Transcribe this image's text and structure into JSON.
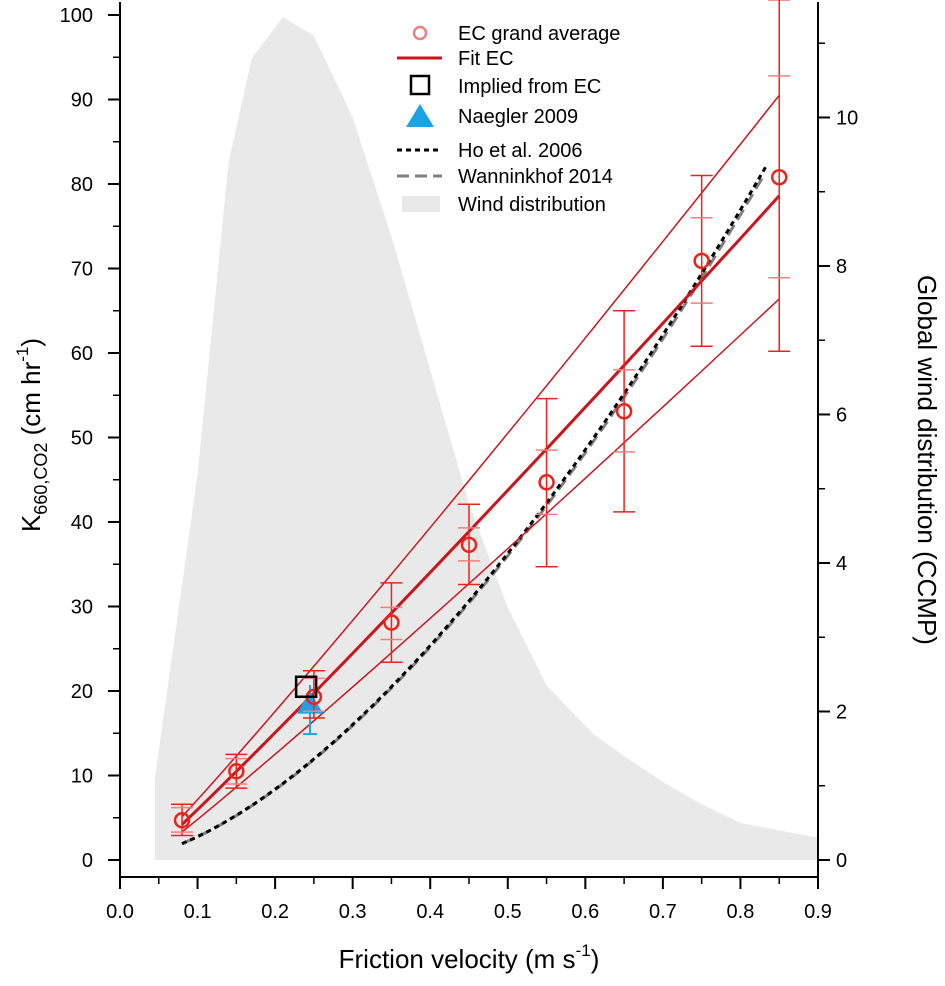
{
  "chart_data": {
    "type": "line",
    "xlabel": {
      "main": "Friction velocity (m s",
      "sup": "-1",
      "close": ")"
    },
    "ylabel": {
      "main": "K",
      "sub": "660,CO2",
      "unit": " (cm hr",
      "sup": "-1",
      "close": ")"
    },
    "y2label": "Global wind distribution (CCMP)",
    "xlim": [
      0.0,
      0.9
    ],
    "ylim": [
      0,
      100
    ],
    "y2lim": [
      0,
      11.38
    ],
    "xticks": [
      "0.0",
      "0.1",
      "0.2",
      "0.3",
      "0.4",
      "0.5",
      "0.6",
      "0.7",
      "0.8",
      "0.9"
    ],
    "yticks": [
      "0",
      "10",
      "20",
      "30",
      "40",
      "50",
      "60",
      "70",
      "80",
      "90",
      "100"
    ],
    "y2ticks": [
      "0",
      "2",
      "4",
      "6",
      "8",
      "10"
    ],
    "colors": {
      "ec": "#e8241c",
      "ec_legend": "#f08080",
      "fit": "#c8161d",
      "implied": "#000000",
      "naegler": "#1ba3e6",
      "ho": "#000000",
      "wanninkhof": "#808080",
      "wind": "#e9e9e9"
    },
    "legend": [
      {
        "label": "EC grand average",
        "icon": "circle-marker"
      },
      {
        "label": "Fit EC",
        "icon": "solid-line"
      },
      {
        "label": "Implied from EC",
        "icon": "square-marker"
      },
      {
        "label": "Naegler 2009",
        "icon": "triangle-marker"
      },
      {
        "label": "Ho et al. 2006",
        "icon": "dotted-line"
      },
      {
        "label": "Wanninkhof 2014",
        "icon": "dashed-line"
      },
      {
        "label": "Wind distribution",
        "icon": "filled-area"
      }
    ],
    "series": [
      {
        "name": "EC grand average",
        "x": [
          0.08,
          0.15,
          0.25,
          0.35,
          0.45,
          0.55,
          0.65,
          0.75,
          0.85
        ],
        "y": [
          4.7,
          10.5,
          19.3,
          28.1,
          37.3,
          44.7,
          53.1,
          70.9,
          80.8
        ],
        "err_outer_low": [
          2.9,
          8.5,
          16.8,
          23.4,
          32.6,
          34.7,
          41.2,
          60.8,
          60.2
        ],
        "err_outer_high": [
          6.6,
          12.5,
          22.4,
          32.8,
          42.1,
          54.6,
          65.0,
          81.0,
          101.8
        ],
        "err_inner_low": [
          3.3,
          9.0,
          17.6,
          26.1,
          35.4,
          40.9,
          48.3,
          65.9,
          68.9
        ],
        "err_inner_high": [
          6.2,
          12.0,
          21.5,
          29.9,
          39.3,
          48.5,
          58.0,
          76.0,
          92.8
        ]
      },
      {
        "name": "Fit EC",
        "x": [
          0.08,
          0.85
        ],
        "y": [
          4.2,
          78.6
        ],
        "upper_y": [
          5.1,
          90.5
        ],
        "lower_y": [
          3.3,
          66.4
        ]
      },
      {
        "name": "Implied from EC",
        "x": [
          0.24
        ],
        "y": [
          20.5
        ]
      },
      {
        "name": "Naegler 2009",
        "x": [
          0.245
        ],
        "y": [
          18.5
        ],
        "err_low": 14.9,
        "err_high": 20.7
      },
      {
        "name": "Ho et al. 2006",
        "x0": 0.08,
        "x1": 0.835,
        "y_end": 82.4,
        "power": 1.6
      },
      {
        "name": "Wanninkhof 2014",
        "x0": 0.08,
        "x1": 0.83,
        "y_end": 81.0,
        "power": 1.6
      },
      {
        "name": "Wind distribution",
        "axis": "right",
        "x": [
          0.045,
          0.045,
          0.1,
          0.14,
          0.17,
          0.21,
          0.25,
          0.3,
          0.35,
          0.4,
          0.45,
          0.5,
          0.55,
          0.61,
          0.65,
          0.7,
          0.75,
          0.8,
          0.85,
          0.9,
          0.9
        ],
        "y": [
          0,
          1.1,
          5.2,
          9.4,
          10.8,
          11.35,
          11.1,
          10.0,
          8.4,
          6.6,
          4.8,
          3.4,
          2.35,
          1.7,
          1.4,
          1.05,
          0.75,
          0.5,
          0.4,
          0.3,
          0
        ]
      }
    ]
  }
}
